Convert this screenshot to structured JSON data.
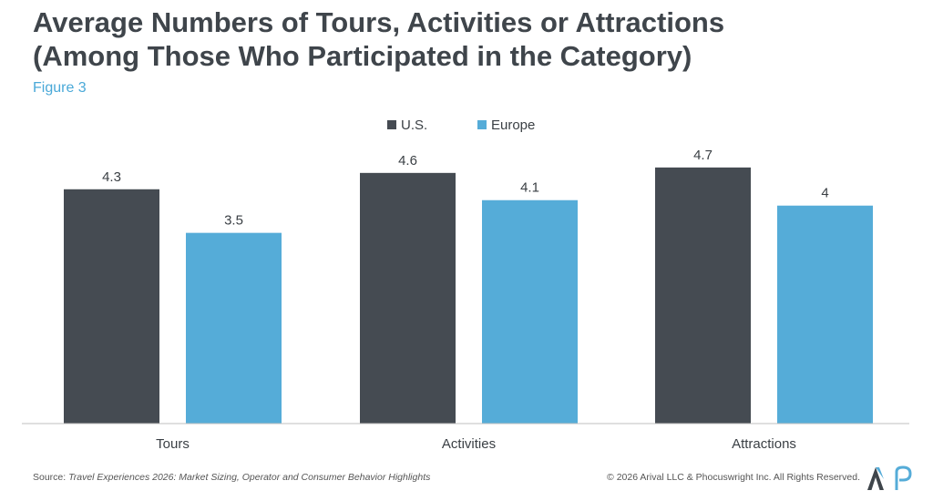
{
  "header": {
    "title_line1": "Average Numbers of Tours, Activities or Attractions",
    "title_line2": "(Among Those Who Participated in the Category)",
    "figure_label": "Figure 3"
  },
  "footer": {
    "source_prefix": "Source:",
    "source_title": "Travel Experiences 2026: Market Sizing, Operator and Consumer Behavior Highlights",
    "copyright": "© 2026 Arival LLC & Phocuswright Inc. All Rights Reserved."
  },
  "logos": {
    "arival": "arival-a-logo",
    "phocuswright": "phocuswright-p-logo"
  },
  "chart_data": {
    "type": "bar",
    "categories": [
      "Tours",
      "Activities",
      "Attractions"
    ],
    "series": [
      {
        "name": "U.S.",
        "values": [
          4.3,
          4.6,
          4.7
        ],
        "labels": [
          "4.3",
          "4.6",
          "4.7"
        ],
        "color": "#454b52"
      },
      {
        "name": "Europe",
        "values": [
          3.5,
          4.1,
          4.0
        ],
        "labels": [
          "3.5",
          "4.1",
          "4"
        ],
        "color": "#55acd8"
      }
    ],
    "ylim": [
      0,
      5.5
    ],
    "grid": false,
    "legend_position": "top-center",
    "data_labels": true
  }
}
